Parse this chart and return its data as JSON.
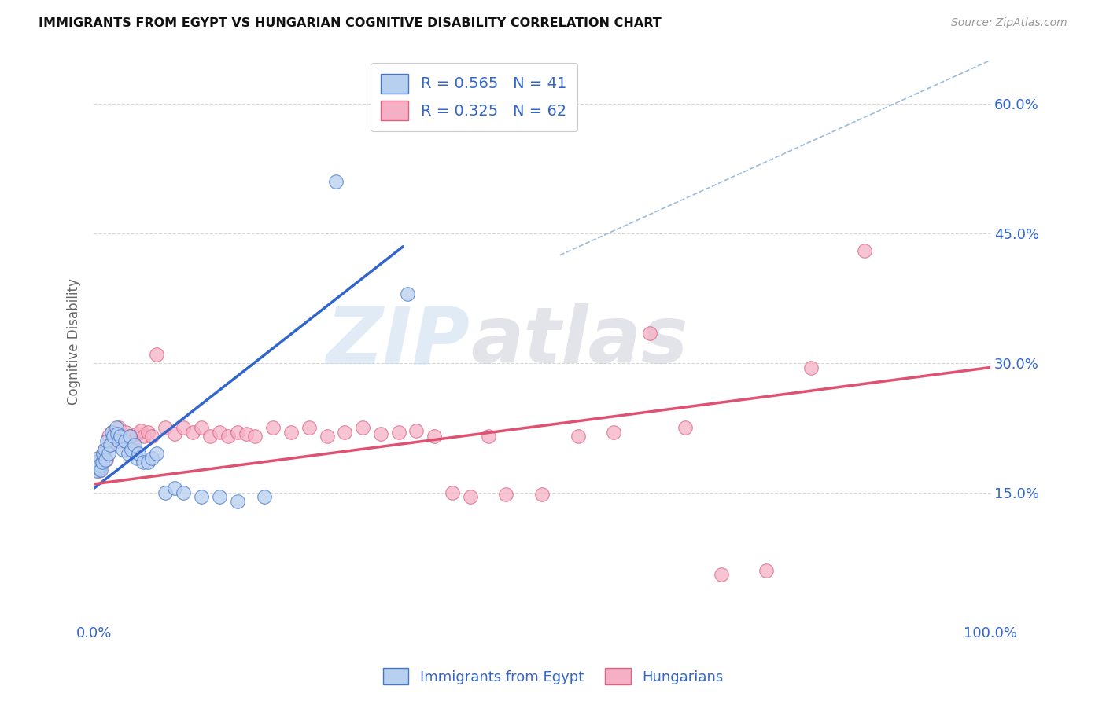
{
  "title": "IMMIGRANTS FROM EGYPT VS HUNGARIAN COGNITIVE DISABILITY CORRELATION CHART",
  "source": "Source: ZipAtlas.com",
  "ylabel": "Cognitive Disability",
  "xlim": [
    0.0,
    1.0
  ],
  "ylim": [
    0.0,
    0.65
  ],
  "xticks": [
    0.0,
    0.25,
    0.5,
    0.75,
    1.0
  ],
  "xtick_labels": [
    "0.0%",
    "",
    "",
    "",
    "100.0%"
  ],
  "yticks": [
    0.15,
    0.3,
    0.45,
    0.6
  ],
  "ytick_labels": [
    "15.0%",
    "30.0%",
    "45.0%",
    "60.0%"
  ],
  "background_color": "#ffffff",
  "grid_color": "#d8d8d8",
  "blue_fill": "#b8d0f0",
  "pink_fill": "#f5b0c5",
  "blue_edge": "#4477cc",
  "pink_edge": "#e06080",
  "blue_line_color": "#3366cc",
  "pink_line_color": "#e05070",
  "diag_line_color": "#99bbdd",
  "title_color": "#111111",
  "axis_tick_color": "#3366cc",
  "ylabel_color": "#666666",
  "R_blue": 0.565,
  "N_blue": 41,
  "R_pink": 0.325,
  "N_pink": 62,
  "blue_scatter_x": [
    0.002,
    0.003,
    0.004,
    0.005,
    0.006,
    0.007,
    0.008,
    0.009,
    0.01,
    0.012,
    0.013,
    0.015,
    0.016,
    0.018,
    0.02,
    0.022,
    0.025,
    0.026,
    0.028,
    0.03,
    0.032,
    0.035,
    0.038,
    0.04,
    0.042,
    0.045,
    0.048,
    0.05,
    0.055,
    0.06,
    0.065,
    0.07,
    0.08,
    0.09,
    0.1,
    0.12,
    0.14,
    0.16,
    0.19,
    0.27,
    0.35
  ],
  "blue_scatter_y": [
    0.185,
    0.175,
    0.18,
    0.19,
    0.178,
    0.182,
    0.176,
    0.185,
    0.195,
    0.2,
    0.188,
    0.21,
    0.195,
    0.205,
    0.22,
    0.215,
    0.225,
    0.218,
    0.21,
    0.215,
    0.2,
    0.21,
    0.195,
    0.215,
    0.2,
    0.205,
    0.19,
    0.195,
    0.185,
    0.185,
    0.19,
    0.195,
    0.15,
    0.155,
    0.15,
    0.145,
    0.145,
    0.14,
    0.145,
    0.51,
    0.38
  ],
  "pink_scatter_x": [
    0.002,
    0.003,
    0.004,
    0.005,
    0.006,
    0.007,
    0.008,
    0.009,
    0.01,
    0.012,
    0.014,
    0.016,
    0.018,
    0.02,
    0.022,
    0.025,
    0.028,
    0.03,
    0.033,
    0.036,
    0.04,
    0.044,
    0.048,
    0.052,
    0.056,
    0.06,
    0.065,
    0.07,
    0.08,
    0.09,
    0.1,
    0.11,
    0.12,
    0.13,
    0.14,
    0.15,
    0.16,
    0.17,
    0.18,
    0.2,
    0.22,
    0.24,
    0.26,
    0.28,
    0.3,
    0.32,
    0.34,
    0.36,
    0.38,
    0.4,
    0.42,
    0.44,
    0.46,
    0.5,
    0.54,
    0.58,
    0.62,
    0.66,
    0.7,
    0.75,
    0.8,
    0.86
  ],
  "pink_scatter_y": [
    0.185,
    0.178,
    0.182,
    0.19,
    0.175,
    0.18,
    0.185,
    0.192,
    0.195,
    0.2,
    0.188,
    0.215,
    0.205,
    0.22,
    0.21,
    0.218,
    0.225,
    0.215,
    0.21,
    0.22,
    0.215,
    0.21,
    0.218,
    0.222,
    0.215,
    0.22,
    0.215,
    0.31,
    0.225,
    0.218,
    0.225,
    0.22,
    0.225,
    0.215,
    0.22,
    0.215,
    0.22,
    0.218,
    0.215,
    0.225,
    0.22,
    0.225,
    0.215,
    0.22,
    0.225,
    0.218,
    0.22,
    0.222,
    0.215,
    0.15,
    0.145,
    0.215,
    0.148,
    0.148,
    0.215,
    0.22,
    0.335,
    0.225,
    0.055,
    0.06,
    0.295,
    0.43
  ],
  "blue_line_x": [
    0.0,
    0.345
  ],
  "blue_line_y": [
    0.155,
    0.435
  ],
  "pink_line_x": [
    0.0,
    1.0
  ],
  "pink_line_y": [
    0.16,
    0.295
  ],
  "diag_line_x": [
    0.52,
    1.02
  ],
  "diag_line_y": [
    0.425,
    0.66
  ],
  "legend_label_blue": "Immigrants from Egypt",
  "legend_label_pink": "Hungarians",
  "watermark": "ZIPatlas",
  "watermark_zip_color": "#c8d8ee",
  "watermark_atlas_color": "#c8c8c8"
}
